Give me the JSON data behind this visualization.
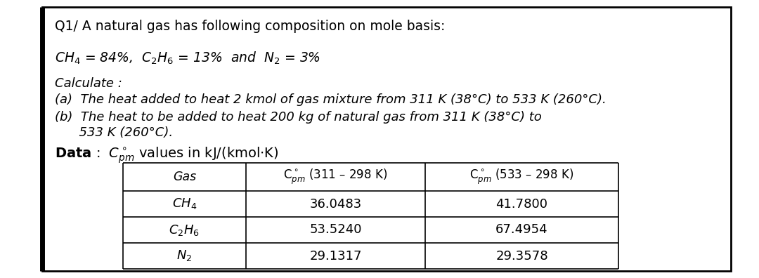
{
  "title_line": "Q1/ A natural gas has following composition on mole basis:",
  "composition": "CH$_4$ = 84%,  C$_2$H$_6$ = 13%  and  N$_2$ = 3%",
  "calculate": "Calculate :",
  "part_a": "(a)  The heat added to heat 2 kmol of gas mixture from 311 K (38°C) to 533 K (260°C).",
  "part_b1": "(b)  The heat to be added to heat 200 kg of natural gas from 311 K (38°C) to",
  "part_b2": "      533 K (260°C).",
  "data_intro": "Data :  C$^\\circ_{pm}$ values in kJ/(kmol·K)",
  "table_gas_header": "Gas",
  "table_col2_header": "C$^\\circ_{pm}$ (311 – 298 K)",
  "table_col3_header": "C$^\\circ_{pm}$ (533 – 298 K)",
  "table_rows": [
    [
      "CH$_4$",
      "36.0483",
      "41.7800"
    ],
    [
      "C$_2$H$_6$",
      "53.5240",
      "67.4954"
    ],
    [
      "N$_2$",
      "29.1317",
      "29.3578"
    ]
  ],
  "bg_color": "#ffffff",
  "border_color": "#000000",
  "text_color": "#000000",
  "figsize": [
    10.8,
    3.96
  ],
  "dpi": 100
}
